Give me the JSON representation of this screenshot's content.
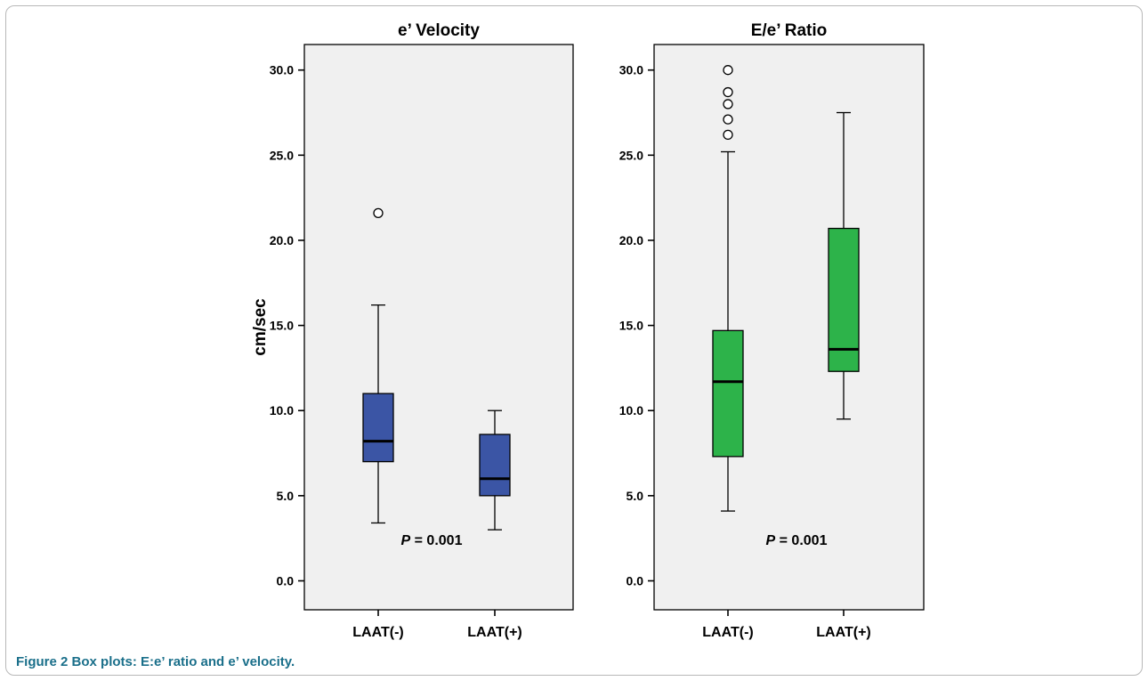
{
  "caption": {
    "label": "Figure 2",
    "text": "Box plots: E:e’ ratio and e’ velocity."
  },
  "colors": {
    "panel_bg": "#f0f0f0",
    "blue_box": "#3b55a5",
    "green_box": "#2db34a",
    "ink": "#000000",
    "caption": "#1a6f8a"
  },
  "chart_data": [
    {
      "type": "box",
      "title": "e’ Velocity",
      "ylabel": "cm/sec",
      "xlabel": "",
      "ylim": [
        -1.7,
        31.5
      ],
      "yticks": [
        0.0,
        5.0,
        10.0,
        15.0,
        20.0,
        25.0,
        30.0
      ],
      "ytick_labels": [
        "0.0",
        "5.0",
        "10.0",
        "15.0",
        "20.0",
        "25.0",
        "30.0"
      ],
      "categories": [
        "LAAT(-)",
        "LAAT(+)"
      ],
      "boxes": [
        {
          "category": "LAAT(-)",
          "whisker_low": 3.4,
          "q1": 7.0,
          "median": 8.2,
          "q3": 11.0,
          "whisker_high": 16.2,
          "outliers": [
            21.6
          ]
        },
        {
          "category": "LAAT(+)",
          "whisker_low": 3.0,
          "q1": 5.0,
          "median": 6.0,
          "q3": 8.6,
          "whisker_high": 10.0,
          "outliers": []
        }
      ],
      "annotation": {
        "italic": "P",
        "rest": " = 0.001"
      },
      "grid": false
    },
    {
      "type": "box",
      "title": "E/e’ Ratio",
      "ylabel": "",
      "xlabel": "",
      "ylim": [
        -1.7,
        31.5
      ],
      "yticks": [
        0.0,
        5.0,
        10.0,
        15.0,
        20.0,
        25.0,
        30.0
      ],
      "ytick_labels": [
        "0.0",
        "5.0",
        "10.0",
        "15.0",
        "20.0",
        "25.0",
        "30.0"
      ],
      "categories": [
        "LAAT(-)",
        "LAAT(+)"
      ],
      "boxes": [
        {
          "category": "LAAT(-)",
          "whisker_low": 4.1,
          "q1": 7.3,
          "median": 11.7,
          "q3": 14.7,
          "whisker_high": 25.2,
          "outliers": [
            26.2,
            27.1,
            28.0,
            28.7,
            30.0
          ]
        },
        {
          "category": "LAAT(+)",
          "whisker_low": 9.5,
          "q1": 12.3,
          "median": 13.6,
          "q3": 20.7,
          "whisker_high": 27.5,
          "outliers": []
        }
      ],
      "annotation": {
        "italic": "P",
        "rest": " = 0.001"
      },
      "grid": false
    }
  ]
}
